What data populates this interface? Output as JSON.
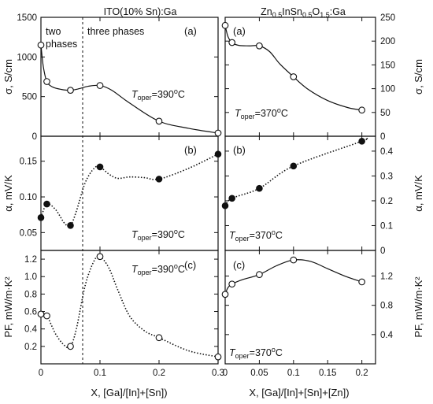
{
  "column_titles": {
    "left": "ITO(10% Sn):Ga",
    "right": "Zn0.5InSn0.5O1.5:Ga"
  },
  "xlabels": {
    "left": "X, [Ga]/[In]+[Sn])",
    "right": "X, [Ga]/[In]+[Sn]+[Zn])"
  },
  "annotations": {
    "two_phases_line1": "two",
    "two_phases_line2": "phases",
    "three_phases": "three phases",
    "t_oper_symbol": "T",
    "t_oper_subscript": "oper",
    "t_left_value": "=390",
    "t_right_value": "=370",
    "degree_unit": "C"
  },
  "colors": {
    "ink": "#111111",
    "background": "#ffffff",
    "open_marker_fill": "#ffffff"
  },
  "chart_data": [
    {
      "id": "left-a",
      "type": "line",
      "letter": "(a)",
      "ylabel": "σ, S/cm",
      "yaxis_side": "left",
      "xlim": [
        0,
        0.3
      ],
      "ylim": [
        0,
        1500
      ],
      "xticks": [
        0,
        0.1,
        0.2,
        0.3
      ],
      "xtick_labels": [],
      "yticks": [
        0,
        500,
        1000,
        1500
      ],
      "ytick_labels": [
        "0",
        "500",
        "1000",
        "1500"
      ],
      "marker": "open",
      "line_style": "solid",
      "x": [
        0,
        0.01,
        0.05,
        0.1,
        0.2,
        0.3
      ],
      "y": [
        1150,
        690,
        580,
        640,
        190,
        40
      ],
      "curve_x": [
        0,
        0.004,
        0.01,
        0.02,
        0.035,
        0.05,
        0.065,
        0.08,
        0.1,
        0.12,
        0.15,
        0.2,
        0.25,
        0.3
      ],
      "curve_y": [
        1150,
        880,
        690,
        620,
        590,
        580,
        600,
        630,
        640,
        580,
        420,
        190,
        100,
        40
      ],
      "t_oper": "390"
    },
    {
      "id": "left-b",
      "type": "line",
      "letter": "(b)",
      "ylabel": "α, mV/K",
      "yaxis_side": "left",
      "xlim": [
        0,
        0.3
      ],
      "ylim": [
        0.025,
        0.185
      ],
      "xticks": [
        0,
        0.1,
        0.2,
        0.3
      ],
      "xtick_labels": [],
      "yticks": [
        0.05,
        0.1,
        0.15
      ],
      "ytick_labels": [
        "0.05",
        "0.10",
        "0.15"
      ],
      "marker": "filled",
      "line_style": "dotted",
      "x": [
        0,
        0.01,
        0.05,
        0.1,
        0.2,
        0.3
      ],
      "y": [
        0.071,
        0.09,
        0.06,
        0.142,
        0.125,
        0.16
      ],
      "curve_x": [
        0,
        0.01,
        0.025,
        0.04,
        0.05,
        0.06,
        0.075,
        0.09,
        0.1,
        0.115,
        0.13,
        0.15,
        0.175,
        0.2,
        0.25,
        0.3
      ],
      "curve_y": [
        0.071,
        0.09,
        0.082,
        0.063,
        0.06,
        0.08,
        0.12,
        0.14,
        0.142,
        0.132,
        0.126,
        0.128,
        0.127,
        0.125,
        0.14,
        0.16
      ],
      "t_oper": "390"
    },
    {
      "id": "left-c",
      "type": "line",
      "letter": "(c)",
      "ylabel": "PF, mW/m·K²",
      "yaxis_side": "left",
      "xlim": [
        0,
        0.3
      ],
      "ylim": [
        0,
        1.3
      ],
      "xticks": [
        0,
        0.1,
        0.2,
        0.3
      ],
      "xtick_labels": [
        "0",
        "0.1",
        "0.2",
        "0.3"
      ],
      "yticks": [
        0.2,
        0.4,
        0.6,
        0.8,
        1.0,
        1.2
      ],
      "ytick_labels": [
        "0.2",
        "0.4",
        "0.6",
        "0.8",
        "1.0",
        "1.2"
      ],
      "marker": "open",
      "line_style": "dotted",
      "x": [
        0,
        0.01,
        0.05,
        0.1,
        0.2,
        0.3
      ],
      "y": [
        0.57,
        0.55,
        0.2,
        1.23,
        0.3,
        0.08
      ],
      "curve_x": [
        0,
        0.01,
        0.025,
        0.04,
        0.05,
        0.06,
        0.075,
        0.09,
        0.1,
        0.115,
        0.13,
        0.15,
        0.175,
        0.2,
        0.25,
        0.3
      ],
      "curve_y": [
        0.57,
        0.55,
        0.34,
        0.21,
        0.2,
        0.4,
        0.9,
        1.18,
        1.23,
        1.1,
        0.85,
        0.55,
        0.38,
        0.3,
        0.15,
        0.08
      ],
      "t_oper": "390"
    },
    {
      "id": "right-a",
      "type": "line",
      "letter": "(a)",
      "ylabel": "σ, S/cm",
      "yaxis_side": "right",
      "xlim": [
        0,
        0.22
      ],
      "ylim": [
        0,
        250
      ],
      "xticks": [
        0,
        0.05,
        0.1,
        0.15,
        0.2
      ],
      "xtick_labels": [],
      "yticks": [
        0,
        50,
        100,
        150,
        200,
        250
      ],
      "ytick_labels": [
        "0",
        "50",
        "100",
        "150",
        "200",
        "250"
      ],
      "marker": "open",
      "line_style": "solid",
      "x": [
        0,
        0.01,
        0.05,
        0.1,
        0.2
      ],
      "y": [
        233,
        197,
        190,
        125,
        55
      ],
      "curve_x": [
        0,
        0.004,
        0.01,
        0.02,
        0.035,
        0.05,
        0.065,
        0.08,
        0.1,
        0.12,
        0.15,
        0.18,
        0.2
      ],
      "curve_y": [
        233,
        210,
        197,
        191,
        190,
        190,
        178,
        152,
        125,
        100,
        75,
        60,
        55
      ],
      "t_oper": "370"
    },
    {
      "id": "right-b",
      "type": "line",
      "letter": "(b)",
      "ylabel": "α, mV/K",
      "yaxis_side": "right",
      "xlim": [
        0,
        0.22
      ],
      "ylim": [
        0,
        0.46
      ],
      "xticks": [
        0,
        0.05,
        0.1,
        0.15,
        0.2
      ],
      "xtick_labels": [],
      "yticks": [
        0,
        0.1,
        0.2,
        0.3,
        0.4
      ],
      "ytick_labels": [
        "0",
        "0.1",
        "0.2",
        "0.3",
        "0.4"
      ],
      "marker": "filled",
      "line_style": "dotted",
      "x": [
        0,
        0.01,
        0.05,
        0.1,
        0.2
      ],
      "y": [
        0.18,
        0.21,
        0.25,
        0.34,
        0.44
      ],
      "curve_x": [
        0,
        0.01,
        0.05,
        0.1,
        0.2,
        0.205
      ],
      "curve_y": [
        0.18,
        0.21,
        0.25,
        0.34,
        0.44,
        0.45
      ],
      "t_oper": "370"
    },
    {
      "id": "right-c",
      "type": "line",
      "letter": "(c)",
      "ylabel": "PF, mW/m·K²",
      "yaxis_side": "right",
      "xlim": [
        0,
        0.22
      ],
      "ylim": [
        0,
        1.55
      ],
      "xticks": [
        0,
        0.05,
        0.1,
        0.15,
        0.2
      ],
      "xtick_labels": [
        "0",
        "0.05",
        "0.1",
        "0.15",
        "0.2"
      ],
      "yticks": [
        0.4,
        0.8,
        1.2
      ],
      "ytick_labels": [
        "0.4",
        "0.8",
        "1.2"
      ],
      "marker": "open",
      "line_style": "solid",
      "x": [
        0,
        0.01,
        0.05,
        0.1,
        0.2
      ],
      "y": [
        0.95,
        1.09,
        1.22,
        1.42,
        1.12
      ],
      "curve_x": [
        0,
        0.004,
        0.01,
        0.025,
        0.05,
        0.075,
        0.1,
        0.125,
        0.15,
        0.175,
        0.2
      ],
      "curve_y": [
        0.95,
        1.04,
        1.09,
        1.15,
        1.22,
        1.34,
        1.42,
        1.4,
        1.3,
        1.2,
        1.12
      ],
      "t_oper": "370"
    }
  ]
}
